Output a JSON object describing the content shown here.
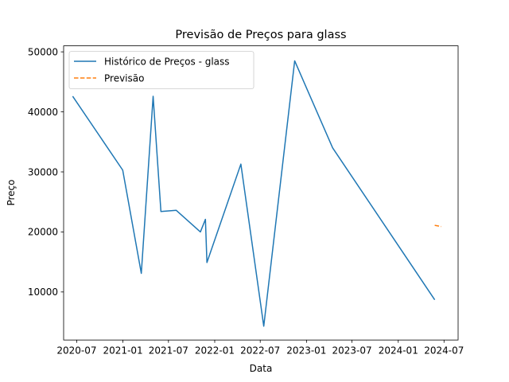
{
  "chart_data": {
    "type": "line",
    "title": "Previsão de Preços para glass",
    "xlabel": "Data",
    "ylabel": "Preço",
    "x_type": "date",
    "xlim": [
      "2020-05-10",
      "2024-08-26"
    ],
    "ylim": [
      2000,
      51000
    ],
    "x_ticks": [
      {
        "date": "2020-07-01",
        "label": "2020-07"
      },
      {
        "date": "2021-01-01",
        "label": "2021-01"
      },
      {
        "date": "2021-07-01",
        "label": "2021-07"
      },
      {
        "date": "2022-01-01",
        "label": "2022-01"
      },
      {
        "date": "2022-07-01",
        "label": "2022-07"
      },
      {
        "date": "2023-01-01",
        "label": "2023-01"
      },
      {
        "date": "2023-07-01",
        "label": "2023-07"
      },
      {
        "date": "2024-01-01",
        "label": "2024-01"
      },
      {
        "date": "2024-07-01",
        "label": "2024-07"
      }
    ],
    "y_ticks": [
      10000,
      20000,
      30000,
      40000,
      50000
    ],
    "grid": false,
    "legend": "upper-left",
    "series": [
      {
        "name": "Histórico de Preços - glass",
        "color": "#1f77b4",
        "style": "solid",
        "x": [
          "2020-06-15",
          "2020-12-31",
          "2021-03-15",
          "2021-05-01",
          "2021-06-01",
          "2021-08-01",
          "2021-11-05",
          "2021-11-25",
          "2021-12-01",
          "2022-04-15",
          "2022-07-15",
          "2022-11-15",
          "2023-04-15",
          "2024-05-25"
        ],
        "y": [
          42600,
          30300,
          13100,
          42600,
          23400,
          23600,
          20000,
          22100,
          14900,
          31300,
          4300,
          48500,
          34000,
          8700
        ]
      },
      {
        "name": "Previsão",
        "color": "#ff7f0e",
        "style": "dashed",
        "x": [
          "2024-05-25",
          "2024-06-20"
        ],
        "y": [
          21100,
          20900
        ]
      }
    ]
  }
}
